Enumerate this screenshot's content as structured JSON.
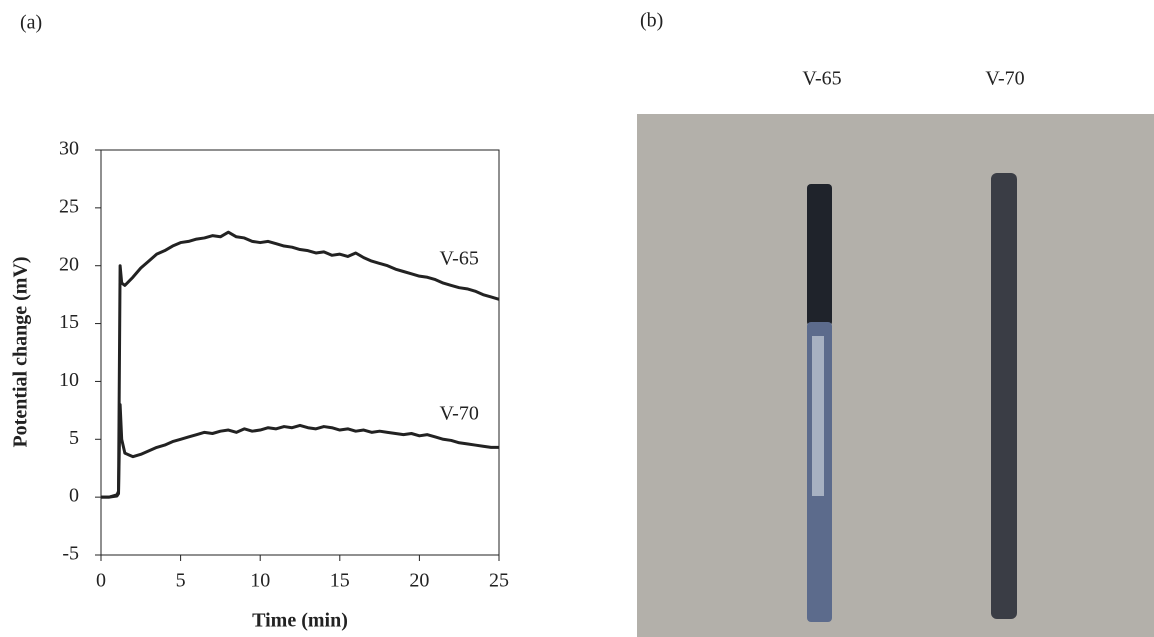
{
  "chart_data": {
    "type": "line",
    "panel_label": "(a)",
    "x_label": "Time (min)",
    "y_label": "Potential change (mV)",
    "x": [
      0,
      0.5,
      1,
      1.1,
      1.2,
      1.3,
      1.5,
      2,
      2.5,
      3,
      3.5,
      4,
      4.5,
      5,
      5.5,
      6,
      6.5,
      7,
      7.5,
      8,
      8.5,
      9,
      9.5,
      10,
      10.5,
      11,
      11.5,
      12,
      12.5,
      13,
      13.5,
      14,
      14.5,
      15,
      15.5,
      16,
      16.5,
      17,
      17.5,
      18,
      18.5,
      19,
      19.5,
      20,
      20.5,
      21,
      21.5,
      22,
      22.5,
      23,
      23.5,
      24,
      24.5,
      25
    ],
    "series": [
      {
        "name": "V-65",
        "color": "#222222",
        "values": [
          0,
          0,
          0.2,
          0.5,
          20,
          18.5,
          18.3,
          19,
          19.8,
          20.4,
          21,
          21.3,
          21.7,
          22,
          22.1,
          22.3,
          22.4,
          22.6,
          22.5,
          22.9,
          22.5,
          22.4,
          22.1,
          22,
          22.1,
          21.9,
          21.7,
          21.6,
          21.4,
          21.3,
          21.1,
          21.2,
          20.9,
          21,
          20.8,
          21.1,
          20.7,
          20.4,
          20.2,
          20,
          19.7,
          19.5,
          19.3,
          19.1,
          19,
          18.8,
          18.5,
          18.3,
          18.1,
          18,
          17.8,
          17.5,
          17.3,
          17.1
        ]
      },
      {
        "name": "V-70",
        "color": "#222222",
        "values": [
          0,
          0,
          0.1,
          0.3,
          8,
          5,
          3.8,
          3.5,
          3.7,
          4,
          4.3,
          4.5,
          4.8,
          5,
          5.2,
          5.4,
          5.6,
          5.5,
          5.7,
          5.8,
          5.6,
          5.9,
          5.7,
          5.8,
          6,
          5.9,
          6.1,
          6,
          6.2,
          6,
          5.9,
          6.1,
          6,
          5.8,
          5.9,
          5.7,
          5.8,
          5.6,
          5.7,
          5.6,
          5.5,
          5.4,
          5.5,
          5.3,
          5.4,
          5.2,
          5,
          4.9,
          4.7,
          4.6,
          4.5,
          4.4,
          4.3,
          4.3
        ]
      }
    ],
    "xlim": [
      0,
      25
    ],
    "xticks": [
      0,
      5,
      10,
      15,
      20,
      25
    ],
    "ylim": [
      -5,
      30
    ],
    "yticks": [
      -5,
      0,
      5,
      10,
      15,
      20,
      25,
      30
    ]
  },
  "photo": {
    "panel_label": "(b)",
    "rods": [
      "V-65",
      "V-70"
    ]
  }
}
